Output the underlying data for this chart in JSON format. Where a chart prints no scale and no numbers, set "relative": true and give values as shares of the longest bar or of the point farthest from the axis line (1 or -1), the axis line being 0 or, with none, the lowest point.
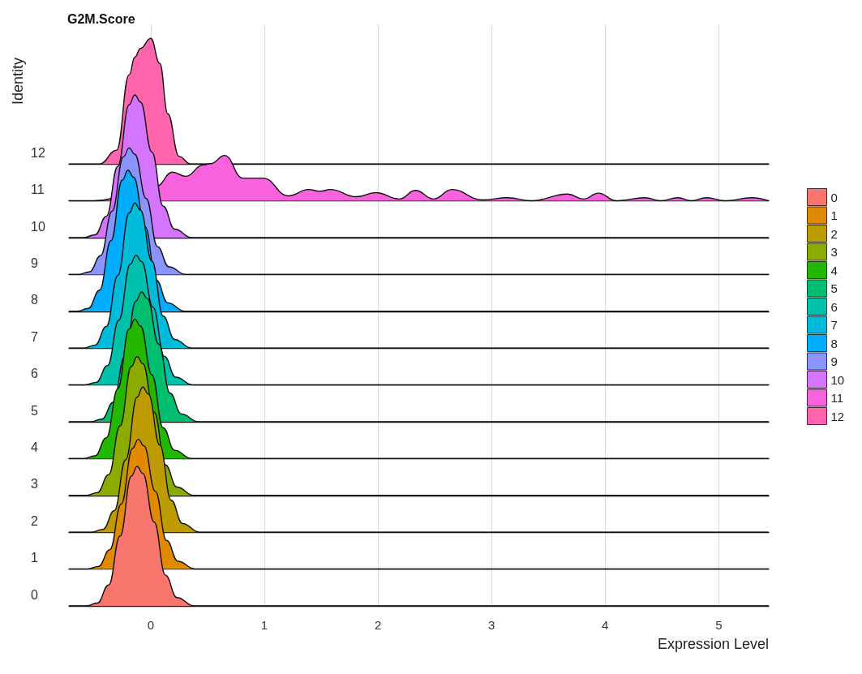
{
  "chart_data": [
    {
      "type": "area",
      "title": "G2M.Score",
      "ylabel": "Identity",
      "relative": true,
      "xlim": [
        -0.72,
        5.44
      ],
      "xticks": [
        0,
        1,
        2,
        3,
        4,
        5
      ],
      "tick_labels": false,
      "grid": "x",
      "legend": "right",
      "series": [
        {
          "name": "12",
          "color": "#ff65ac",
          "x": [
            -0.72,
            -0.45,
            -0.3,
            -0.19,
            -0.14,
            -0.09,
            0,
            0.08,
            0.15,
            0.25,
            0.35,
            5.44
          ],
          "values": [
            0,
            0,
            0.11,
            0.71,
            0.85,
            0.92,
            1,
            0.8,
            0.4,
            0.06,
            0,
            0
          ]
        }
      ]
    },
    {
      "type": "area",
      "relative": true,
      "xlim": [
        -0.72,
        5.44
      ],
      "xticks": [
        0,
        1,
        2,
        3,
        4,
        5
      ],
      "tick_labels": false,
      "legend": "right",
      "series": [
        {
          "name": "11",
          "color": "#f962dd",
          "x": [
            -0.72,
            -0.5,
            0.05,
            0.19,
            0.31,
            0.46,
            0.53,
            0.65,
            0.81,
            0.99,
            1.21,
            1.39,
            1.49,
            1.58,
            1.81,
            1.98,
            2.19,
            2.33,
            2.49,
            2.65,
            2.92,
            3.14,
            3.35,
            3.67,
            3.81,
            3.94,
            4.1,
            4.35,
            4.49,
            4.64,
            4.76,
            4.89,
            5.06,
            5.29,
            5.44
          ],
          "values": [
            0,
            0,
            0.32,
            0.63,
            0.54,
            0.79,
            0.82,
            1,
            0.5,
            0.5,
            0.11,
            0.25,
            0.21,
            0.25,
            0.09,
            0.18,
            0.04,
            0.23,
            0.04,
            0.25,
            0.02,
            0.07,
            0,
            0.15,
            0.04,
            0.17,
            0,
            0.07,
            0,
            0.07,
            0,
            0.07,
            0,
            0.07,
            0
          ]
        }
      ]
    },
    {
      "type": "area",
      "relative": true,
      "xlim": [
        -0.72,
        5.44
      ],
      "xticks": [
        0,
        1,
        2,
        3,
        4,
        5
      ],
      "tick_labels": false,
      "legend": "right",
      "series": [
        {
          "name": "10",
          "color": "#d575fe",
          "x": [
            -0.72,
            -0.59,
            -0.49,
            -0.39,
            -0.29,
            -0.19,
            -0.14,
            -0.09,
            0.01,
            0.11,
            0.21,
            0.36,
            5.44
          ],
          "values": [
            0,
            0,
            0.02,
            0.15,
            0.5,
            0.93,
            1,
            0.95,
            0.6,
            0.22,
            0.06,
            0,
            0
          ]
        }
      ]
    },
    {
      "type": "area",
      "relative": true,
      "xlim": [
        -0.72,
        5.44
      ],
      "xticks": [
        0,
        1,
        2,
        3,
        4,
        5
      ],
      "tick_labels": false,
      "legend": "right",
      "series": [
        {
          "name": "9",
          "color": "#8b93ff",
          "x": [
            -0.72,
            -0.64,
            -0.54,
            -0.44,
            -0.34,
            -0.24,
            -0.19,
            -0.14,
            -0.04,
            0.06,
            0.16,
            0.31,
            5.44
          ],
          "values": [
            0,
            0,
            0.02,
            0.15,
            0.5,
            0.93,
            1,
            0.95,
            0.6,
            0.22,
            0.06,
            0,
            0
          ]
        }
      ]
    },
    {
      "type": "area",
      "relative": true,
      "xlim": [
        -0.72,
        5.44
      ],
      "xticks": [
        0,
        1,
        2,
        3,
        4,
        5
      ],
      "tick_labels": false,
      "legend": "right",
      "series": [
        {
          "name": "8",
          "color": "#00acfc",
          "x": [
            -0.72,
            -0.65,
            -0.55,
            -0.45,
            -0.35,
            -0.25,
            -0.2,
            -0.15,
            -0.05,
            0.05,
            0.15,
            0.3,
            5.44
          ],
          "values": [
            0,
            0,
            0.02,
            0.15,
            0.5,
            0.93,
            1,
            0.95,
            0.6,
            0.22,
            0.06,
            0,
            0
          ]
        }
      ]
    },
    {
      "type": "area",
      "relative": true,
      "xlim": [
        -0.72,
        5.44
      ],
      "xticks": [
        0,
        1,
        2,
        3,
        4,
        5
      ],
      "tick_labels": false,
      "legend": "right",
      "series": [
        {
          "name": "7",
          "color": "#00bbda",
          "x": [
            -0.72,
            -0.59,
            -0.49,
            -0.39,
            -0.29,
            -0.19,
            -0.14,
            -0.09,
            0.01,
            0.11,
            0.21,
            0.36,
            5.44
          ],
          "values": [
            0,
            0,
            0.02,
            0.15,
            0.5,
            0.93,
            1,
            0.95,
            0.6,
            0.22,
            0.06,
            0,
            0
          ]
        }
      ]
    },
    {
      "type": "area",
      "relative": true,
      "xlim": [
        -0.72,
        5.44
      ],
      "xticks": [
        0,
        1,
        2,
        3,
        4,
        5
      ],
      "tick_labels": false,
      "legend": "right",
      "series": [
        {
          "name": "6",
          "color": "#00c1ab",
          "x": [
            -0.72,
            -0.58,
            -0.48,
            -0.38,
            -0.28,
            -0.18,
            -0.13,
            -0.08,
            0.02,
            0.12,
            0.22,
            0.37,
            5.44
          ],
          "values": [
            0,
            0,
            0.02,
            0.15,
            0.5,
            0.93,
            1,
            0.95,
            0.6,
            0.22,
            0.06,
            0,
            0
          ]
        }
      ]
    },
    {
      "type": "area",
      "relative": true,
      "xlim": [
        -0.72,
        5.44
      ],
      "xticks": [
        0,
        1,
        2,
        3,
        4,
        5
      ],
      "tick_labels": false,
      "legend": "right",
      "series": [
        {
          "name": "5",
          "color": "#00be70",
          "x": [
            -0.72,
            -0.53,
            -0.43,
            -0.33,
            -0.23,
            -0.13,
            -0.08,
            -0.03,
            0.07,
            0.17,
            0.27,
            0.42,
            5.44
          ],
          "values": [
            0,
            0,
            0.02,
            0.15,
            0.5,
            0.93,
            1,
            0.95,
            0.6,
            0.22,
            0.06,
            0,
            0
          ]
        }
      ]
    },
    {
      "type": "area",
      "relative": true,
      "xlim": [
        -0.72,
        5.44
      ],
      "xticks": [
        0,
        1,
        2,
        3,
        4,
        5
      ],
      "tick_labels": false,
      "legend": "right",
      "series": [
        {
          "name": "4",
          "color": "#24b700",
          "x": [
            -0.72,
            -0.59,
            -0.49,
            -0.39,
            -0.29,
            -0.19,
            -0.14,
            -0.09,
            0.01,
            0.11,
            0.21,
            0.36,
            5.44
          ],
          "values": [
            0,
            0,
            0.02,
            0.15,
            0.5,
            0.93,
            1,
            0.95,
            0.6,
            0.22,
            0.06,
            0,
            0
          ]
        }
      ]
    },
    {
      "type": "area",
      "relative": true,
      "xlim": [
        -0.72,
        5.44
      ],
      "xticks": [
        0,
        1,
        2,
        3,
        4,
        5
      ],
      "tick_labels": false,
      "legend": "right",
      "series": [
        {
          "name": "3",
          "color": "#8cab00",
          "x": [
            -0.72,
            -0.57,
            -0.47,
            -0.37,
            -0.27,
            -0.17,
            -0.12,
            -0.07,
            0.03,
            0.13,
            0.23,
            0.38,
            5.44
          ],
          "values": [
            0,
            0,
            0.02,
            0.15,
            0.5,
            0.93,
            1,
            0.95,
            0.6,
            0.22,
            0.06,
            0,
            0
          ]
        }
      ]
    },
    {
      "type": "area",
      "relative": true,
      "xlim": [
        -0.72,
        5.44
      ],
      "xticks": [
        0,
        1,
        2,
        3,
        4,
        5
      ],
      "tick_labels": false,
      "legend": "right",
      "series": [
        {
          "name": "2",
          "color": "#be9c00",
          "x": [
            -0.72,
            -0.52,
            -0.42,
            -0.32,
            -0.22,
            -0.12,
            -0.07,
            -0.02,
            0.08,
            0.18,
            0.28,
            0.43,
            5.44
          ],
          "values": [
            0,
            0,
            0.02,
            0.15,
            0.5,
            0.93,
            1,
            0.95,
            0.6,
            0.22,
            0.06,
            0,
            0
          ]
        }
      ]
    },
    {
      "type": "area",
      "relative": true,
      "xlim": [
        -0.72,
        5.44
      ],
      "xticks": [
        0,
        1,
        2,
        3,
        4,
        5
      ],
      "tick_labels": false,
      "legend": "right",
      "series": [
        {
          "name": "1",
          "color": "#e18a00",
          "x": [
            -0.72,
            -0.56,
            -0.46,
            -0.36,
            -0.26,
            -0.16,
            -0.11,
            -0.06,
            0.04,
            0.14,
            0.24,
            0.39,
            5.44
          ],
          "values": [
            0,
            0,
            0.02,
            0.15,
            0.5,
            0.93,
            1,
            0.95,
            0.6,
            0.22,
            0.06,
            0,
            0
          ]
        }
      ]
    },
    {
      "type": "area",
      "xlabel": "Expression Level",
      "relative": true,
      "xlim": [
        -0.72,
        5.44
      ],
      "xticks": [
        0,
        1,
        2,
        3,
        4,
        5
      ],
      "tick_labels": "x",
      "legend": "right",
      "series": [
        {
          "name": "0",
          "color": "#f8766d",
          "x": [
            -0.72,
            -0.57,
            -0.47,
            -0.37,
            -0.27,
            -0.17,
            -0.12,
            -0.07,
            0.03,
            0.13,
            0.23,
            0.38,
            5.44
          ],
          "values": [
            0,
            0,
            0.02,
            0.15,
            0.5,
            0.93,
            1,
            0.95,
            0.6,
            0.22,
            0.06,
            0,
            0
          ]
        }
      ]
    }
  ]
}
